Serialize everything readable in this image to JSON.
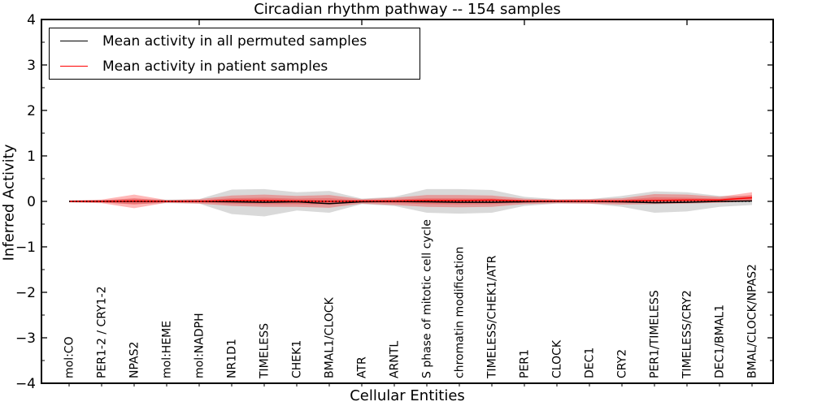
{
  "title": "Circadian rhythm pathway -- 154 samples",
  "legend": {
    "entries": [
      {
        "label": "Mean activity in all permuted samples",
        "color": "#000000"
      },
      {
        "label": "Mean activity in patient samples",
        "color": "#ff0000"
      }
    ]
  },
  "chart_data": {
    "type": "line",
    "title": "Circadian rhythm pathway -- 154 samples",
    "xlabel": "Cellular Entities",
    "ylabel": "Inferred Activity",
    "ylim": [
      -4,
      4
    ],
    "grid": false,
    "legend_position": "upper left",
    "y_major_ticks": [
      4,
      3,
      2,
      1,
      0,
      -1,
      -2,
      -3,
      -4
    ],
    "y_minor_ticks": [
      3.5,
      2.5,
      1.5,
      0.5,
      -0.5,
      -1.5,
      -2.5,
      -3.5
    ],
    "x_auto_tick_indices": [
      4,
      9,
      14,
      19
    ],
    "categories": [
      "mol:CO",
      "PER1-2 / CRY1-2",
      "NPAS2",
      "mol:HEME",
      "mol:NADPH",
      "NR1D1",
      "TIMELESS",
      "CHEK1",
      "BMAL1/CLOCK",
      "ATR",
      "ARNTL",
      "S phase of mitotic cell cycle",
      "chromatin modification",
      "TIMELESS/CHEK1/ATR",
      "PER1",
      "CLOCK",
      "DEC1",
      "CRY2",
      "PER1/TIMELESS",
      "TIMELESS/CRY2",
      "DEC1/BMAL1",
      "BMAL/CLOCK/NPAS2"
    ],
    "series": [
      {
        "name": "Mean activity in all permuted samples",
        "color": "#000000",
        "values": [
          0,
          0,
          0,
          0,
          0,
          -0.01,
          -0.02,
          -0.01,
          -0.05,
          -0.01,
          0,
          -0.01,
          -0.02,
          -0.02,
          -0.01,
          0,
          0,
          -0.01,
          -0.03,
          -0.02,
          0,
          0.01
        ]
      },
      {
        "name": "Mean activity in patient samples",
        "color": "#ff0000",
        "values": [
          0,
          0,
          0.01,
          0,
          0,
          0.02,
          0.02,
          0.01,
          0,
          0.01,
          0.01,
          0.02,
          0.02,
          0.03,
          0.01,
          0.01,
          0.01,
          0.01,
          0.02,
          0.03,
          0.03,
          0.08
        ]
      }
    ],
    "zero_line": {
      "y": 0,
      "style": "dotted",
      "color": "#000000"
    },
    "bands": [
      {
        "name": "permuted-samples-range",
        "color": "#808080",
        "opacity": 0.3,
        "upper": [
          0.02,
          0.03,
          0.06,
          0.04,
          0.05,
          0.26,
          0.27,
          0.2,
          0.23,
          0.06,
          0.1,
          0.27,
          0.27,
          0.25,
          0.1,
          0.05,
          0.05,
          0.12,
          0.22,
          0.2,
          0.12,
          0.12
        ],
        "lower": [
          -0.02,
          -0.03,
          -0.06,
          -0.04,
          -0.05,
          -0.28,
          -0.33,
          -0.2,
          -0.25,
          -0.06,
          -0.1,
          -0.25,
          -0.27,
          -0.25,
          -0.1,
          -0.05,
          -0.05,
          -0.12,
          -0.25,
          -0.22,
          -0.12,
          -0.08
        ]
      },
      {
        "name": "patient-samples-range-outer",
        "color": "#ff0000",
        "opacity": 0.28,
        "upper": [
          0.02,
          0.04,
          0.15,
          0.03,
          0.05,
          0.13,
          0.15,
          0.12,
          0.14,
          0.05,
          0.08,
          0.14,
          0.14,
          0.13,
          0.06,
          0.04,
          0.05,
          0.07,
          0.16,
          0.15,
          0.1,
          0.2
        ],
        "lower": [
          -0.02,
          -0.04,
          -0.15,
          -0.03,
          -0.05,
          -0.1,
          -0.12,
          -0.12,
          -0.14,
          -0.05,
          -0.08,
          -0.12,
          -0.13,
          -0.12,
          -0.06,
          -0.04,
          -0.05,
          -0.07,
          -0.06,
          -0.05,
          -0.03,
          0
        ]
      },
      {
        "name": "patient-samples-range-inner",
        "color": "#ff0000",
        "opacity": 0.25,
        "upper": [
          0.01,
          0.02,
          0.07,
          0.015,
          0.025,
          0.07,
          0.08,
          0.06,
          0.07,
          0.025,
          0.04,
          0.07,
          0.07,
          0.065,
          0.03,
          0.02,
          0.025,
          0.035,
          0.09,
          0.08,
          0.06,
          0.14
        ],
        "lower": [
          -0.01,
          -0.02,
          -0.07,
          -0.015,
          -0.025,
          -0.05,
          -0.06,
          -0.06,
          -0.07,
          -0.025,
          -0.04,
          -0.06,
          -0.065,
          -0.06,
          -0.03,
          -0.02,
          -0.025,
          -0.035,
          -0.03,
          -0.02,
          -0.01,
          0.02
        ]
      }
    ]
  }
}
